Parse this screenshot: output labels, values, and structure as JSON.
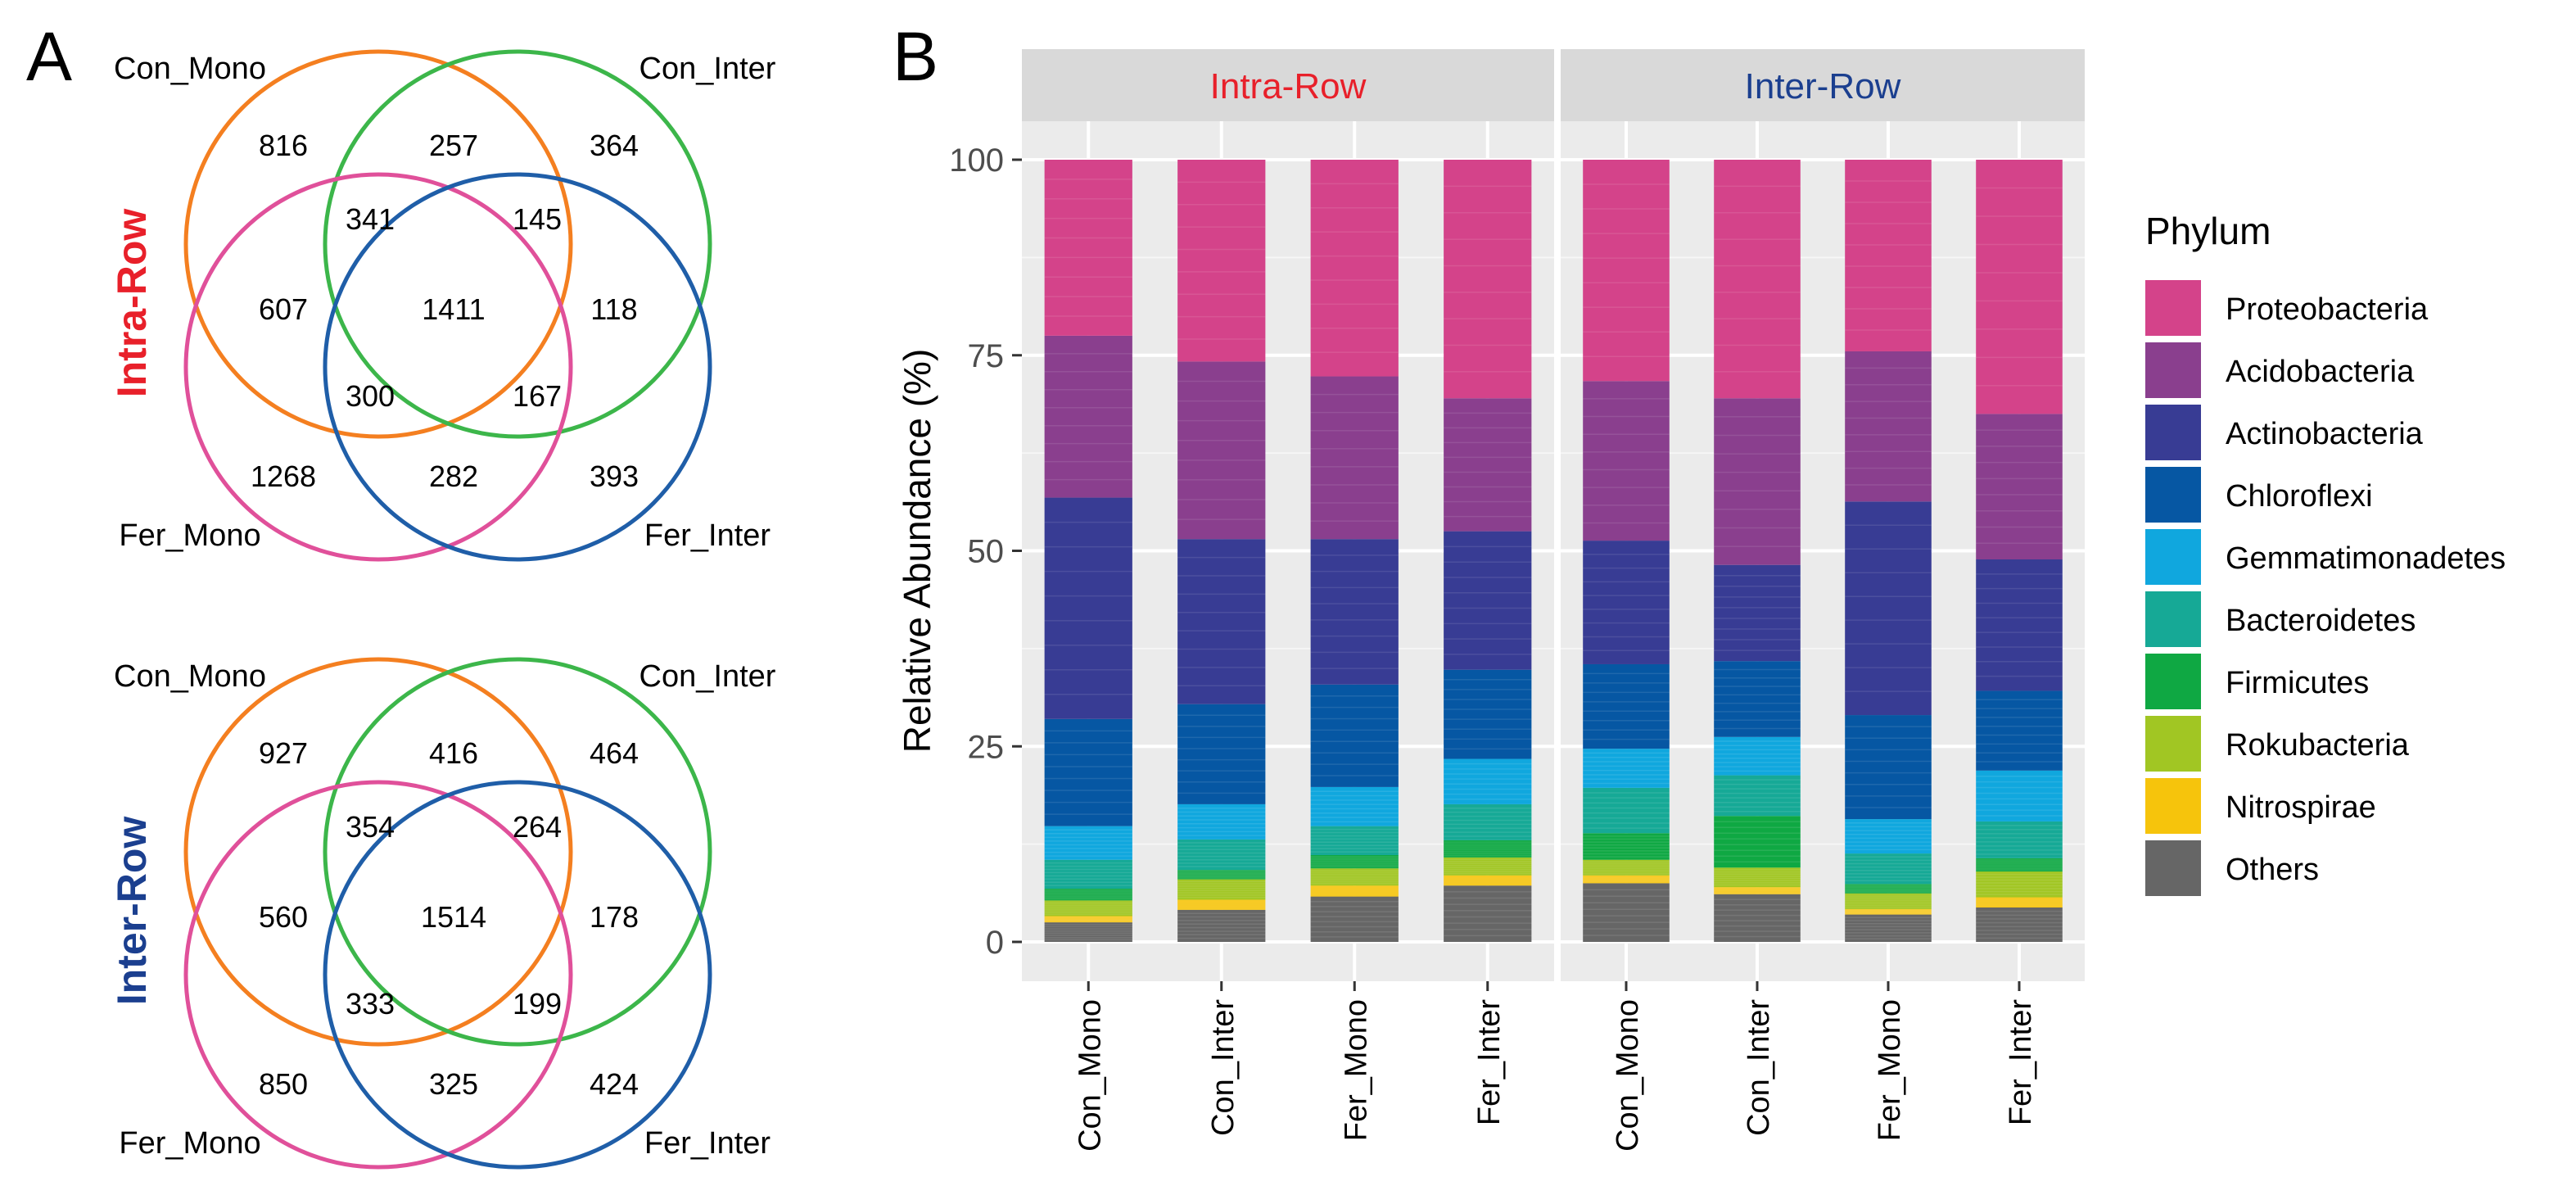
{
  "panel_labels": [
    "A",
    "B"
  ],
  "venn": {
    "set_labels": [
      "Con_Mono",
      "Con_Inter",
      "Fer_Mono",
      "Fer_Inter"
    ],
    "set_colors": [
      "#F47F20",
      "#3CB64A",
      "#E0509A",
      "#1F5EA8"
    ],
    "diagrams": [
      {
        "title": "Intra-Row",
        "title_color": "#E8202A",
        "counts": {
          "con_mono_only": "816",
          "con_inter_only": "364",
          "fer_mono_only": "1268",
          "fer_inter_only": "393",
          "cm_ci": "257",
          "cm_fm": "607",
          "ci_fi": "118",
          "fm_fi": "282",
          "cm_ci_fm": "341",
          "cm_ci_fi": "145",
          "cm_fm_fi": "300",
          "ci_fm_fi": "167",
          "all": "1411"
        }
      },
      {
        "title": "Inter-Row",
        "title_color": "#1B3F8F",
        "counts": {
          "con_mono_only": "927",
          "con_inter_only": "464",
          "fer_mono_only": "850",
          "fer_inter_only": "424",
          "cm_ci": "416",
          "cm_fm": "560",
          "ci_fi": "178",
          "fm_fi": "325",
          "cm_ci_fm": "354",
          "cm_ci_fi": "264",
          "cm_fm_fi": "333",
          "ci_fm_fi": "199",
          "all": "1514"
        }
      }
    ]
  },
  "chart_data": {
    "type": "bar",
    "stacked": true,
    "ylabel": "Relative Abundance (%)",
    "ylim": [
      0,
      100
    ],
    "yticks": [
      "0",
      "25",
      "50",
      "75",
      "100"
    ],
    "categories": [
      "Con_Mono",
      "Con_Inter",
      "Fer_Mono",
      "Fer_Inter"
    ],
    "facets": [
      {
        "title": "Intra-Row",
        "title_color": "#E8202A"
      },
      {
        "title": "Inter-Row",
        "title_color": "#1B3F8F"
      }
    ],
    "legend_title": "Phylum",
    "legend_position": "right",
    "series_stack_order": "bottom-to-top: Others, Nitrospirae, Rokubacteria, Firmicutes, Bacteroidetes, Gemmatimonadetes, Chloroflexi, Actinobacteria, Acidobacteria, Proteobacteria",
    "series": [
      {
        "name": "Proteobacteria",
        "color": "#D4438A",
        "values": [
          [
            22.5,
            25.8,
            27.7,
            30.5
          ],
          [
            28.3,
            30.5,
            24.5,
            32.5
          ]
        ]
      },
      {
        "name": "Acidobacteria",
        "color": "#8A3F8E",
        "values": [
          [
            20.7,
            22.7,
            20.8,
            17.0
          ],
          [
            20.4,
            21.3,
            19.2,
            18.6
          ]
        ]
      },
      {
        "name": "Actinobacteria",
        "color": "#383C94",
        "values": [
          [
            28.3,
            21.1,
            18.6,
            17.7
          ],
          [
            15.8,
            12.3,
            27.3,
            16.8
          ]
        ]
      },
      {
        "name": "Chloroflexi",
        "color": "#0657A3",
        "values": [
          [
            13.7,
            12.8,
            13.1,
            11.4
          ],
          [
            10.8,
            9.7,
            13.3,
            10.2
          ]
        ]
      },
      {
        "name": "Gemmatimonadetes",
        "color": "#10A7DE",
        "values": [
          [
            4.3,
            4.5,
            5.0,
            5.8
          ],
          [
            5.0,
            4.9,
            4.4,
            6.5
          ]
        ]
      },
      {
        "name": "Bacteroidetes",
        "color": "#16A996",
        "values": [
          [
            3.7,
            3.9,
            3.7,
            4.6
          ],
          [
            5.8,
            5.2,
            3.9,
            4.7
          ]
        ]
      },
      {
        "name": "Firmicutes",
        "color": "#0FA843",
        "values": [
          [
            1.5,
            1.2,
            1.7,
            2.2
          ],
          [
            3.4,
            6.6,
            1.2,
            1.7
          ]
        ]
      },
      {
        "name": "Rokubacteria",
        "color": "#A1C623",
        "values": [
          [
            2.0,
            2.6,
            2.2,
            2.3
          ],
          [
            2.0,
            2.5,
            2.0,
            3.3
          ]
        ]
      },
      {
        "name": "Nitrospirae",
        "color": "#F6C40C",
        "values": [
          [
            0.8,
            1.3,
            1.4,
            1.3
          ],
          [
            1.0,
            0.9,
            0.7,
            1.3
          ]
        ]
      },
      {
        "name": "Others",
        "color": "#666666",
        "values": [
          [
            2.5,
            4.1,
            5.8,
            7.2
          ],
          [
            7.5,
            6.1,
            3.5,
            4.4
          ]
        ]
      }
    ]
  }
}
